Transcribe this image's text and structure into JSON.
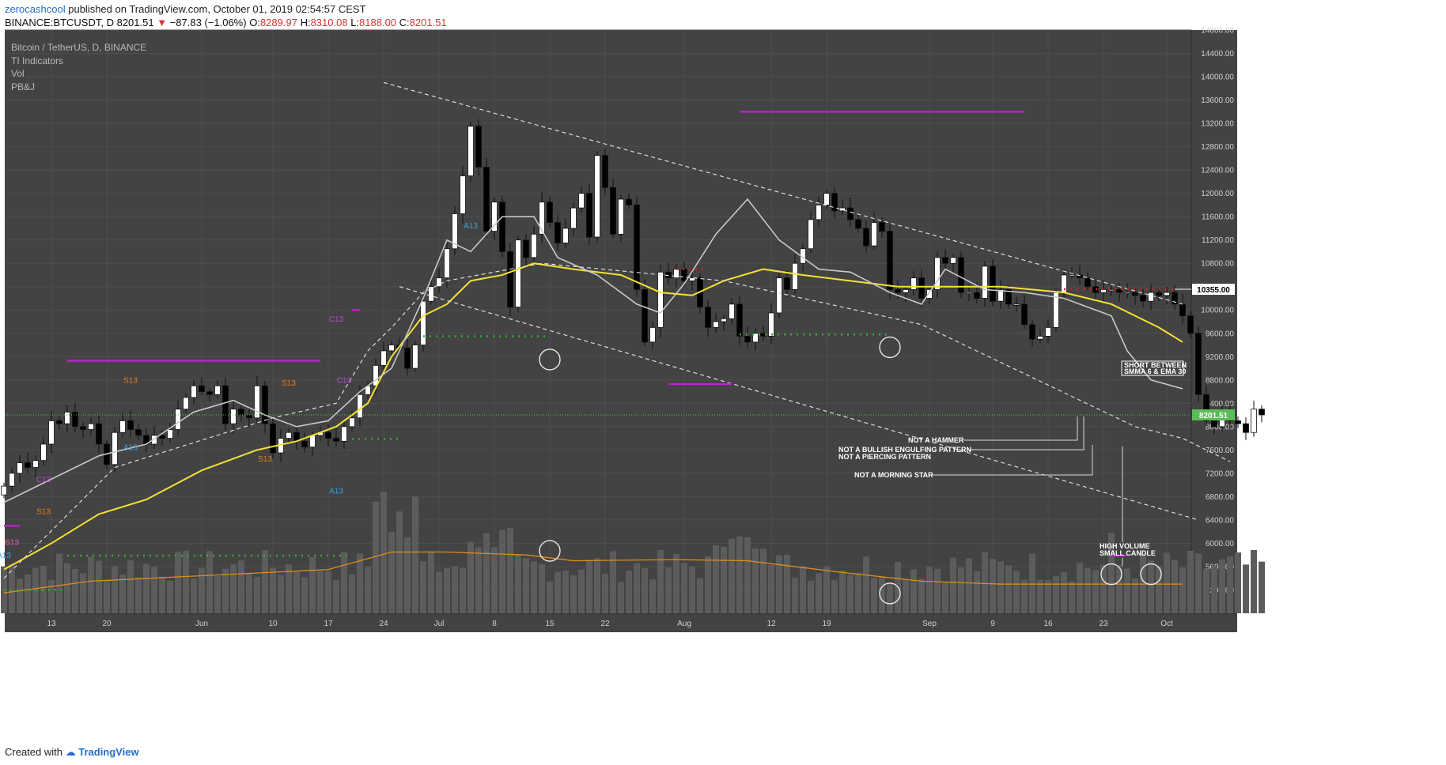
{
  "header": {
    "author": "zerocashcool",
    "published_text": "published on TradingView.com, October 01, 2019 02:54:57 CEST",
    "symbol": "BINANCE:BTCUSDT, D",
    "last_price": "8201.51",
    "change_arrow": "▼",
    "change": "−87.83 (−1.06%)",
    "o_label": "O:",
    "o_value": "8289.97",
    "h_label": "H:",
    "h_value": "8310.08",
    "l_label": "L:",
    "l_value": "8188.00",
    "c_label": "C:",
    "c_value": "8201.51"
  },
  "legend": {
    "title": "Bitcoin / TetherUS, D, BINANCE",
    "indicators": [
      "TI Indicators",
      "Vol",
      "PB&J"
    ]
  },
  "footer": {
    "created_with": "Created with",
    "brand": "TradingView"
  },
  "colors": {
    "background": "#434343",
    "grid": "#4e4e4e",
    "up_candle": "#ffffff",
    "down_candle": "#000000",
    "ema30": "#f5e133",
    "smma6": "#c8c8c8",
    "volume": "#5c5c5c",
    "volume_ma": "#e08b1e",
    "resistance_magenta": "#b624c8",
    "dotted_green": "#2fae2f",
    "dotted_red": "#d11f1f",
    "price_tag_last": "#5bbd57",
    "price_tag_level": "#ffffff"
  },
  "chart_data": {
    "type": "candlestick",
    "period": "D",
    "y_range": [
      4800,
      14800
    ],
    "y_ticks": [
      "14800.00",
      "14400.00",
      "14000.00",
      "13600.00",
      "13200.00",
      "12800.00",
      "12400.00",
      "12000.00",
      "11600.00",
      "11200.00",
      "10800.00",
      "10400.00",
      "10000.00",
      "9600.00",
      "9200.00",
      "8800.00",
      "8400.00",
      "8000.00",
      "7600.00",
      "7200.00",
      "6800.00",
      "6400.00",
      "6000.00",
      "5600.00",
      "5200.00"
    ],
    "x_ticks": [
      {
        "label": "13",
        "day": 0
      },
      {
        "label": "20",
        "day": 7
      },
      {
        "label": "Jun",
        "day": 19
      },
      {
        "label": "10",
        "day": 28
      },
      {
        "label": "17",
        "day": 35
      },
      {
        "label": "24",
        "day": 42
      },
      {
        "label": "Jul",
        "day": 49
      },
      {
        "label": "8",
        "day": 56
      },
      {
        "label": "15",
        "day": 63
      },
      {
        "label": "22",
        "day": 70
      },
      {
        "label": "Aug",
        "day": 80
      },
      {
        "label": "12",
        "day": 91
      },
      {
        "label": "19",
        "day": 98
      },
      {
        "label": "Sep",
        "day": 111
      },
      {
        "label": "9",
        "day": 119
      },
      {
        "label": "16",
        "day": 126
      },
      {
        "label": "23",
        "day": 133
      },
      {
        "label": "Oct",
        "day": 141
      }
    ],
    "start_day_offset": -6,
    "closes": [
      6980,
      7200,
      7380,
      7300,
      7420,
      7700,
      8100,
      8050,
      8250,
      8000,
      7950,
      8050,
      7700,
      7350,
      7900,
      8100,
      7950,
      7850,
      7700,
      7850,
      7800,
      7950,
      8300,
      8500,
      8700,
      8600,
      8550,
      8700,
      8050,
      8300,
      8200,
      8150,
      8700,
      8050,
      7550,
      7800,
      7900,
      7750,
      7650,
      7850,
      7900,
      7800,
      7750,
      8000,
      8150,
      8550,
      8700,
      9050,
      9300,
      9400,
      9350,
      9000,
      9400,
      10150,
      10400,
      10550,
      11050,
      11650,
      12300,
      13150,
      12450,
      11350,
      11850,
      11000,
      10050,
      11200,
      10900,
      11300,
      11850,
      11500,
      11150,
      11400,
      11750,
      12000,
      11250,
      12650,
      12100,
      11300,
      11900,
      11800,
      10350,
      9450,
      9700,
      10650,
      10550,
      10700,
      10500,
      10550,
      10050,
      9700,
      9800,
      9850,
      10100,
      9550,
      9450,
      9600,
      9550,
      9950,
      10550,
      10350,
      10800,
      11050,
      11550,
      11800,
      12000,
      11700,
      11750,
      11550,
      11400,
      11100,
      11500,
      11350,
      10350,
      10300,
      10350,
      10550,
      10200,
      10350,
      10900,
      10800,
      10900,
      10300,
      10300,
      10200,
      10750,
      10150,
      10350,
      10100,
      10100,
      9750,
      9500,
      9550,
      9700,
      10300,
      10600,
      10600,
      10550,
      10400,
      10300,
      10350,
      10350,
      10300,
      10300,
      10250,
      10150,
      10300,
      10250,
      10300,
      10100,
      9900,
      9600,
      8550,
      8100,
      8000,
      8250,
      8100,
      8050,
      7900,
      8300,
      8201.51
    ],
    "volume_range": [
      0,
      1
    ],
    "ema30_points": [
      [
        -6,
        5550
      ],
      [
        0,
        6000
      ],
      [
        6,
        6500
      ],
      [
        12,
        6750
      ],
      [
        19,
        7250
      ],
      [
        26,
        7600
      ],
      [
        31,
        7750
      ],
      [
        36,
        8000
      ],
      [
        40,
        8400
      ],
      [
        43,
        9200
      ],
      [
        47,
        9900
      ],
      [
        50,
        10100
      ],
      [
        53,
        10500
      ],
      [
        57,
        10600
      ],
      [
        61,
        10800
      ],
      [
        66,
        10700
      ],
      [
        72,
        10600
      ],
      [
        77,
        10300
      ],
      [
        81,
        10250
      ],
      [
        85,
        10500
      ],
      [
        90,
        10700
      ],
      [
        95,
        10600
      ],
      [
        101,
        10500
      ],
      [
        107,
        10400
      ],
      [
        113,
        10400
      ],
      [
        120,
        10400
      ],
      [
        128,
        10300
      ],
      [
        134,
        10100
      ],
      [
        137,
        9900
      ],
      [
        140,
        9700
      ],
      [
        143,
        9450
      ]
    ],
    "smma6_points": [
      [
        -6,
        6700
      ],
      [
        0,
        7100
      ],
      [
        6,
        7500
      ],
      [
        12,
        7700
      ],
      [
        18,
        8250
      ],
      [
        23,
        8450
      ],
      [
        27,
        8200
      ],
      [
        31,
        8000
      ],
      [
        35,
        8100
      ],
      [
        39,
        8600
      ],
      [
        43,
        9000
      ],
      [
        47,
        10200
      ],
      [
        50,
        11200
      ],
      [
        53,
        11000
      ],
      [
        57,
        11600
      ],
      [
        61,
        11600
      ],
      [
        64,
        10900
      ],
      [
        69,
        10600
      ],
      [
        74,
        10100
      ],
      [
        77,
        9950
      ],
      [
        80,
        10450
      ],
      [
        84,
        11300
      ],
      [
        88,
        11900
      ],
      [
        92,
        11200
      ],
      [
        97,
        10700
      ],
      [
        101,
        10650
      ],
      [
        106,
        10300
      ],
      [
        110,
        10100
      ],
      [
        113,
        10700
      ],
      [
        118,
        10350
      ],
      [
        123,
        10300
      ],
      [
        128,
        10200
      ],
      [
        132,
        10000
      ],
      [
        134,
        9900
      ],
      [
        136,
        9300
      ],
      [
        139,
        8800
      ],
      [
        143,
        8650
      ]
    ],
    "volume_ma_points": [
      [
        -6,
        5150
      ],
      [
        5,
        5350
      ],
      [
        20,
        5450
      ],
      [
        35,
        5550
      ],
      [
        43,
        5850
      ],
      [
        50,
        5850
      ],
      [
        60,
        5800
      ],
      [
        66,
        5700
      ],
      [
        79,
        5720
      ],
      [
        88,
        5700
      ],
      [
        100,
        5500
      ],
      [
        110,
        5350
      ],
      [
        120,
        5300
      ],
      [
        133,
        5300
      ],
      [
        143,
        5300
      ]
    ],
    "dashed_channel_upper": [
      [
        42,
        13900
      ],
      [
        143,
        10100
      ]
    ],
    "dashed_channel_mid": [
      [
        -6,
        5400
      ],
      [
        8,
        7300
      ],
      [
        28,
        8150
      ],
      [
        36,
        8400
      ],
      [
        40,
        9300
      ],
      [
        43,
        9700
      ],
      [
        47,
        10300
      ],
      [
        50,
        10500
      ],
      [
        62,
        10800
      ],
      [
        85,
        10500
      ],
      [
        110,
        9750
      ],
      [
        137,
        8000
      ],
      [
        143,
        7800
      ],
      [
        149,
        7400
      ]
    ],
    "dashed_channel_lower": [
      [
        44,
        10400
      ],
      [
        145,
        6400
      ]
    ],
    "horizontal_level": 10355,
    "last_price": 8201.51,
    "resistance_lines": [
      {
        "x": [
          -6,
          -4
        ],
        "y": 6300
      },
      {
        "x": [
          2,
          34
        ],
        "y": 9130
      },
      {
        "x": [
          38,
          39
        ],
        "y": 10000
      },
      {
        "x": [
          78,
          86
        ],
        "y": 8730
      },
      {
        "x": [
          87,
          123
        ],
        "y": 13400
      },
      {
        "x": [
          134,
          136
        ],
        "y": 5790
      }
    ],
    "green_dot_lines": [
      {
        "x": [
          -6,
          2
        ],
        "y": 5200
      },
      {
        "x": [
          2,
          38
        ],
        "y": 5790
      },
      {
        "x": [
          38,
          44
        ],
        "y": 7790
      },
      {
        "x": [
          47,
          63
        ],
        "y": 9550
      },
      {
        "x": [
          87,
          106
        ],
        "y": 9580
      }
    ],
    "red_dot_lines": [
      {
        "x": [
          79,
          83
        ],
        "y": 10700
      },
      {
        "x": [
          128,
          142
        ],
        "y": 10355
      }
    ],
    "circles": [
      {
        "day": 63,
        "y": 9150
      },
      {
        "day": 63,
        "y": 5870
      },
      {
        "day": 106,
        "y": 9360
      },
      {
        "day": 106,
        "y": 5140
      },
      {
        "day": 134,
        "y": 5470
      },
      {
        "day": 139,
        "y": 5470
      }
    ],
    "annotations": [
      {
        "text": "SHORT BETWEEN",
        "boxed": true
      },
      {
        "text": "SMMA 6 & EMA 30",
        "boxed": true
      },
      {
        "text": "NOT A HAMMER"
      },
      {
        "text": "NOT A BULLISH ENGULFING PATTERN"
      },
      {
        "text": "NOT A PIERCING PATTERN"
      },
      {
        "text": "NOT A MORNING STAR"
      },
      {
        "text": "HIGH VOLUME"
      },
      {
        "text": "SMALL CANDLE"
      }
    ],
    "td_labels": [
      "S13",
      "A13",
      "C13",
      "S13",
      "C13",
      "S13",
      "A13",
      "S13",
      "S13",
      "C13",
      "C13",
      "A13",
      "A13"
    ]
  }
}
